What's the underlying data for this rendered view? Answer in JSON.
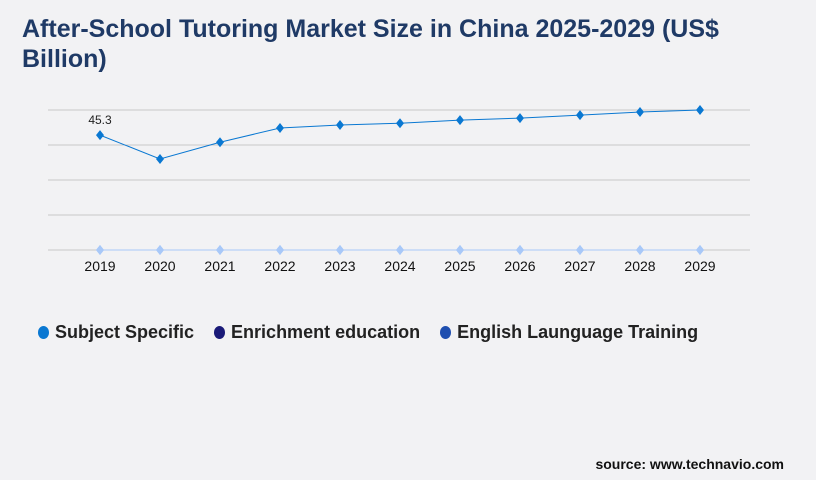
{
  "title": "After-School Tutoring Market Size in China 2025-2029 (US$ Billion)",
  "source": "source: www.technavio.com",
  "chart_data": {
    "type": "line",
    "title": "After-School Tutoring Market Size in China 2025-2029 (US$ Billion)",
    "categories": [
      "2019",
      "2020",
      "2021",
      "2022",
      "2023",
      "2024",
      "2025",
      "2026",
      "2027",
      "2028",
      "2029"
    ],
    "series": [
      {
        "name": "Subject Specific",
        "color": "#0a78d2",
        "values": [
          45.3,
          35.9,
          42.5,
          48.1,
          49.3,
          50.0,
          51.2,
          52.0,
          53.2,
          54.4,
          55.2
        ]
      },
      {
        "name": "Enrichment education",
        "color": "#1a1a78",
        "values": [
          0,
          0,
          0,
          0,
          0,
          0,
          0,
          0,
          0,
          0,
          0
        ]
      },
      {
        "name": "English Launguage Training",
        "color": "#1f4fb0",
        "values": [
          0,
          0,
          0,
          0,
          0,
          0,
          0,
          0,
          0,
          0,
          0
        ]
      }
    ],
    "baseline_marker_color": "#a8c8f8",
    "data_labels": [
      {
        "category": "2019",
        "text": "45.3"
      }
    ],
    "ylim": [
      0,
      55.2
    ],
    "grid": true,
    "legend": "bottom-left"
  }
}
